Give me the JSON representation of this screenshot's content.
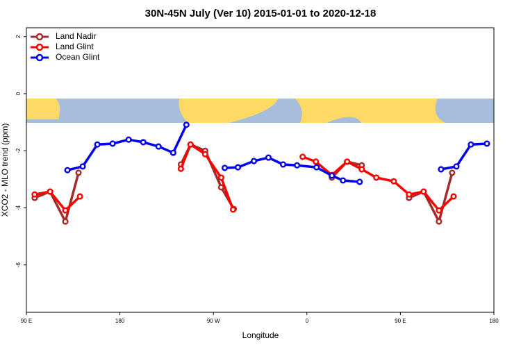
{
  "chart_data": {
    "type": "line",
    "title": "30N-45N July (Ver 10)   2015-01-01 to 2020-12-18",
    "x_label": "Longitude",
    "y_label": "XCO2 - MLO trend (ppm)",
    "xlim": [
      90,
      540
    ],
    "ylim": [
      -7.66,
      2.31
    ],
    "xticks": [
      {
        "value": 90,
        "label": "90 E"
      },
      180,
      {
        "value": 270,
        "label": "90 W"
      },
      {
        "value": 360,
        "label": "0"
      },
      {
        "value": 450,
        "label": "90 E"
      },
      180
    ],
    "yticks": [
      -6,
      -4,
      -2,
      0,
      2
    ],
    "legend": "top-left",
    "series": [
      {
        "name": "Land Nadir",
        "color": "#a52a2a",
        "x": [
          98,
          112.8,
          127.5,
          140.2,
          null,
          238.7,
          248,
          262.1,
          277.5,
          289.6,
          null,
          384,
          398.7,
          412.8,
          null,
          458.3,
          472.4,
          487.1,
          499.8
        ],
        "values": [
          -3.65,
          -3.43,
          -4.48,
          -2.77,
          null,
          -2.48,
          -1.78,
          -2.0,
          -3.28,
          -4.04,
          null,
          -2.94,
          -2.38,
          -2.51,
          null,
          -3.65,
          -3.43,
          -4.48,
          -2.77
        ]
      },
      {
        "name": "Land Glint",
        "color": "#ff0000",
        "x": [
          98,
          112.8,
          127.5,
          141.6,
          null,
          238.7,
          248,
          262.1,
          277.5,
          288.9,
          null,
          355.9,
          368.6,
          384,
          398.7,
          412.8,
          426.8,
          443.6,
          458.3,
          472.4,
          487.1,
          501.2
        ],
        "values": [
          -3.53,
          -3.43,
          -4.09,
          -3.6,
          null,
          -2.63,
          -1.78,
          -2.12,
          -2.94,
          -4.06,
          null,
          -2.21,
          -2.38,
          -2.85,
          -2.38,
          -2.65,
          -2.94,
          -3.07,
          -3.53,
          -3.43,
          -4.09,
          -3.6
        ]
      },
      {
        "name": "Ocean Glint",
        "color": "#0000ee",
        "x": [
          129.5,
          144.2,
          158.3,
          173,
          188.4,
          202.5,
          217.2,
          231.3,
          244,
          null,
          280.9,
          293.6,
          309,
          323,
          337.1,
          350.5,
          369.3,
          384,
          394.7,
          410.8,
          null,
          489.1,
          503.9,
          517.9,
          533.3
        ],
        "values": [
          -2.68,
          -2.55,
          -1.78,
          -1.75,
          -1.61,
          -1.7,
          -1.85,
          -2.07,
          -1.09,
          null,
          -2.6,
          -2.58,
          -2.36,
          -2.24,
          -2.48,
          -2.51,
          -2.58,
          -2.87,
          -3.04,
          -3.09,
          null,
          -2.65,
          -2.55,
          -1.78,
          -1.75
        ]
      }
    ]
  }
}
